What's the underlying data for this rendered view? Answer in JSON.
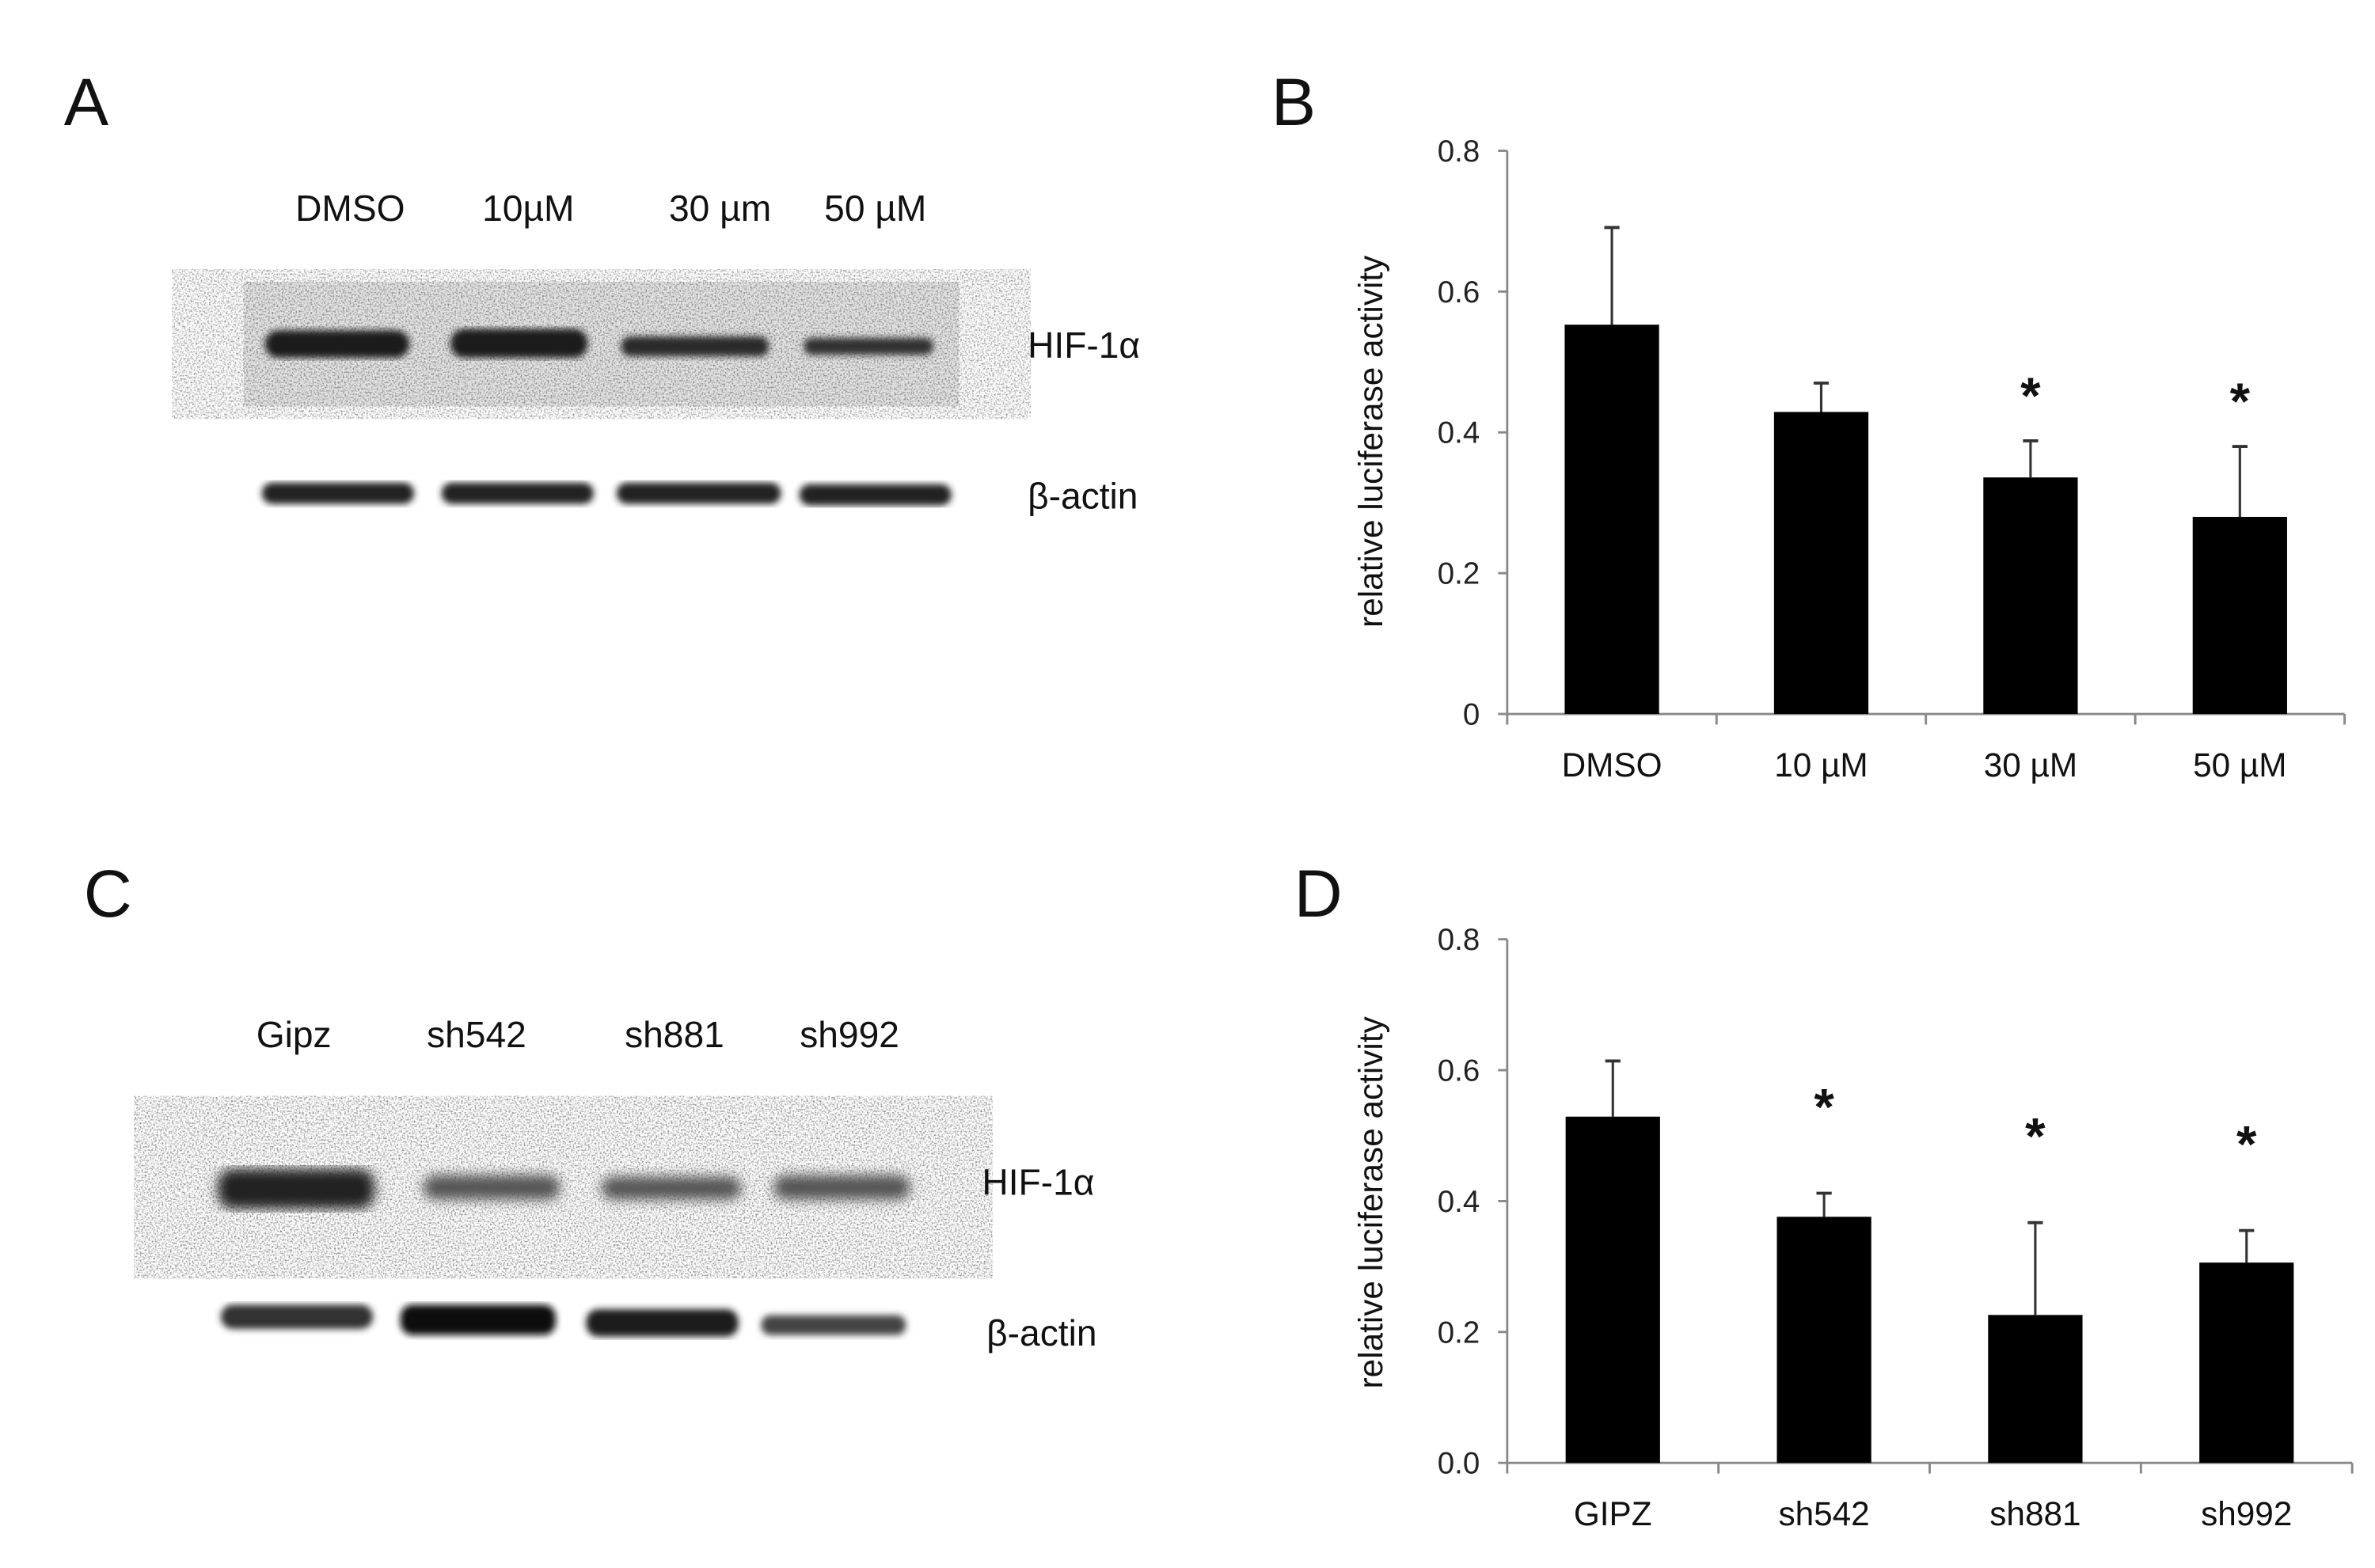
{
  "panels": {
    "a": "A",
    "b": "B",
    "c": "C",
    "d": "D"
  },
  "blot_a": {
    "lanes": [
      "DMSO",
      "10µM",
      "30 µm",
      "50 µM"
    ],
    "rows": [
      "HIF-1α",
      "β-actin"
    ]
  },
  "blot_c": {
    "lanes": [
      "Gipz",
      "sh542",
      "sh881",
      "sh992"
    ],
    "rows": [
      "HIF-1α",
      "β-actin"
    ]
  },
  "chart_data": [
    {
      "type": "bar",
      "panel": "B",
      "categories": [
        "DMSO",
        "10 µM",
        "30 µM",
        "50 µM"
      ],
      "values": [
        0.553,
        0.429,
        0.336,
        0.28
      ],
      "error_upper": [
        0.691,
        0.47,
        0.388,
        0.38
      ],
      "significance": [
        "",
        "",
        "*",
        "*"
      ],
      "ylabel": "relative luciferase activity",
      "xlabel": "",
      "ylim": [
        0,
        0.8
      ],
      "yticks": [
        "0",
        "0.2",
        "0.4",
        "0.6",
        "0.8"
      ],
      "color": "#000000"
    },
    {
      "type": "bar",
      "panel": "D",
      "categories": [
        "GIPZ",
        "sh542",
        "sh881",
        "sh992"
      ],
      "values": [
        0.529,
        0.376,
        0.226,
        0.306
      ],
      "error_upper": [
        0.614,
        0.412,
        0.367,
        0.355
      ],
      "significance": [
        "",
        "*",
        "*",
        "*"
      ],
      "ylabel": "relative luciferase activity",
      "xlabel": "",
      "ylim": [
        0,
        0.8
      ],
      "yticks": [
        "0.0",
        "0.2",
        "0.4",
        "0.6",
        "0.8"
      ],
      "color": "#000000"
    }
  ]
}
